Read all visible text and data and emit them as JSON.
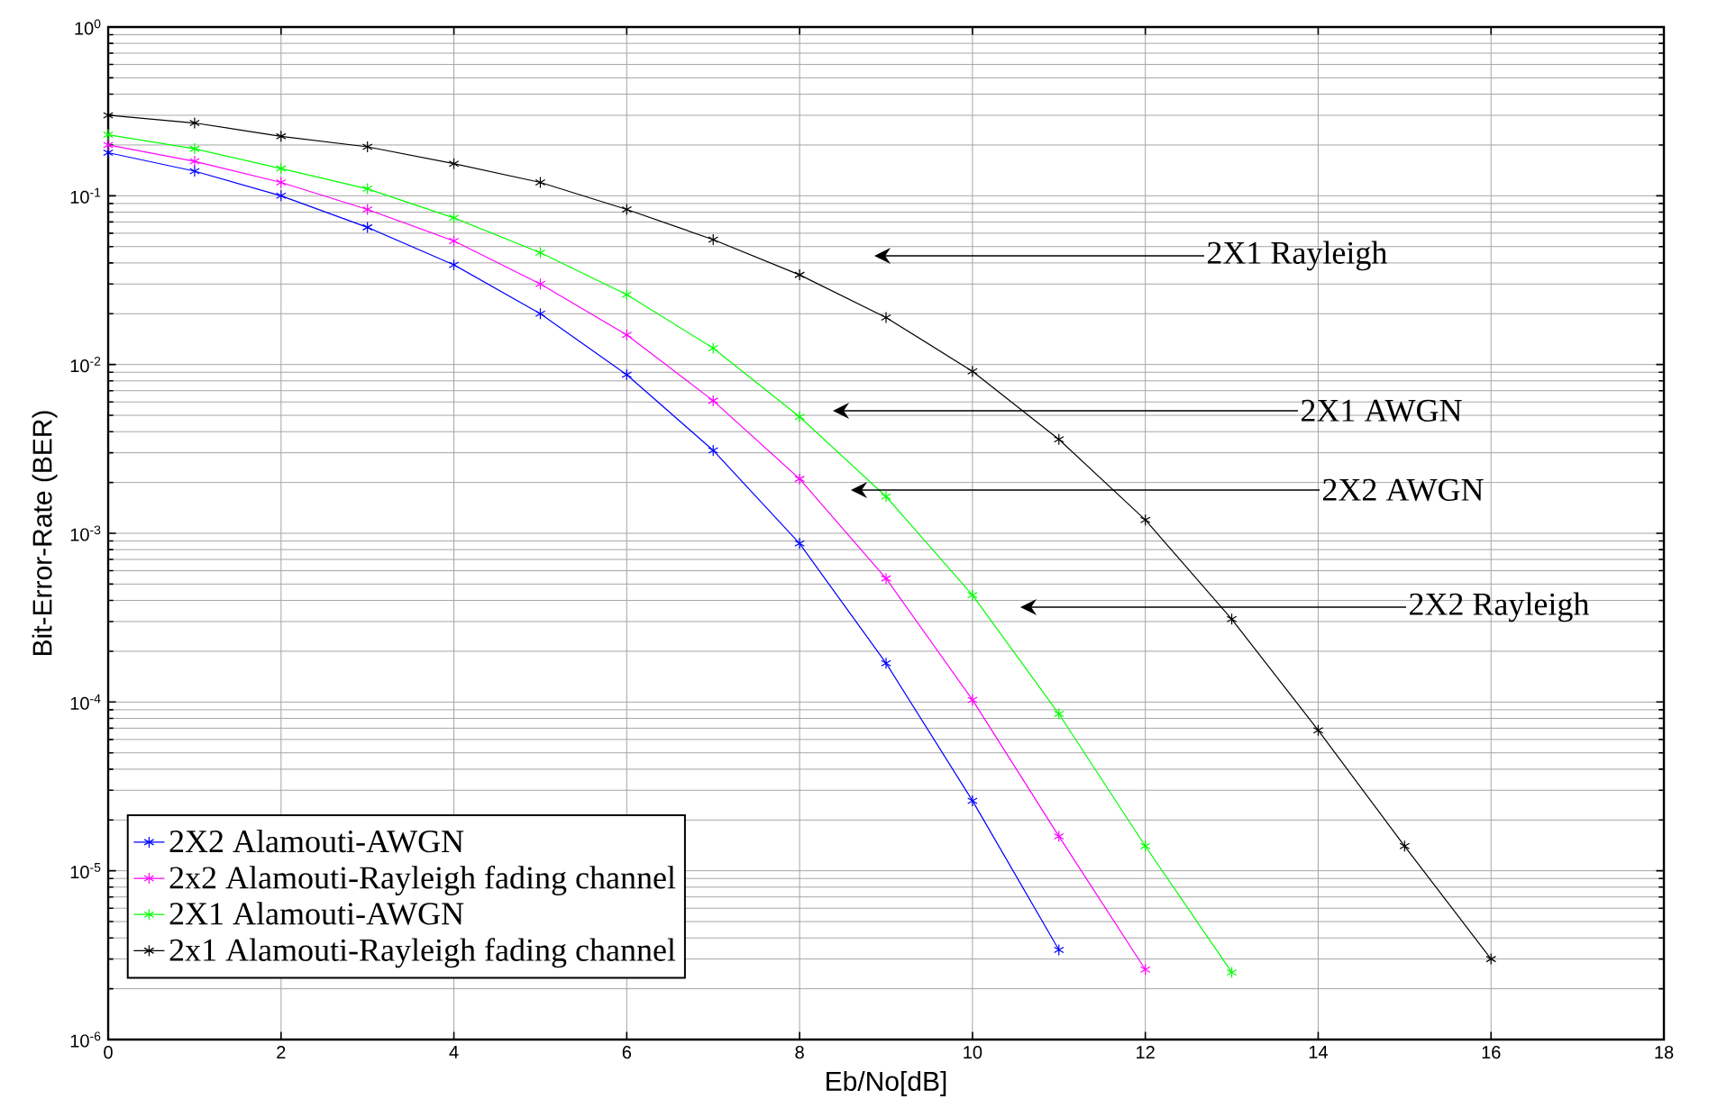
{
  "chart_data": {
    "type": "line",
    "xlabel": "Eb/No[dB]",
    "ylabel": "Bit-Error-Rate (BER)",
    "x": [
      0,
      1,
      2,
      3,
      4,
      5,
      6,
      7,
      8,
      9,
      10,
      11,
      12,
      13,
      14,
      15,
      16
    ],
    "series": [
      {
        "name": "2X2 Alamouti-AWGN",
        "color": "#0000ff",
        "values": [
          0.18,
          0.14,
          0.1,
          0.065,
          0.039,
          0.02,
          0.0087,
          0.0031,
          0.00087,
          0.00017,
          2.6e-05,
          3.4e-06,
          null,
          null,
          null,
          null,
          null
        ]
      },
      {
        "name": "2x2 Alamouti-Rayleigh fading channel",
        "color": "#ff00ff",
        "values": [
          0.2,
          0.16,
          0.12,
          0.083,
          0.054,
          0.03,
          0.015,
          0.0061,
          0.0021,
          0.00054,
          0.000103,
          1.6e-05,
          2.6e-06,
          null,
          null,
          null,
          null
        ]
      },
      {
        "name": "2X1 Alamouti-AWGN",
        "color": "#00ff00",
        "values": [
          0.23,
          0.19,
          0.145,
          0.11,
          0.074,
          0.046,
          0.026,
          0.0125,
          0.0049,
          0.00165,
          0.00043,
          8.5e-05,
          1.4e-05,
          2.5e-06,
          null,
          null,
          null
        ]
      },
      {
        "name": "2x1 Alamouti-Rayleigh fading channel",
        "color": "#000000",
        "values": [
          0.3,
          0.27,
          0.225,
          0.195,
          0.155,
          0.12,
          0.083,
          0.055,
          0.034,
          0.019,
          0.0091,
          0.0036,
          0.0012,
          0.00031,
          6.8e-05,
          1.4e-05,
          3e-06
        ]
      }
    ],
    "xlim": [
      0,
      18
    ],
    "xticks": [
      0,
      2,
      4,
      6,
      8,
      10,
      12,
      14,
      16,
      18
    ],
    "ylim": [
      1e-06,
      1
    ],
    "yticks": [
      {
        "value": 1e-06,
        "label": "10$^{-6}$"
      },
      {
        "value": 1e-05,
        "label": "10$^{-5}$"
      },
      {
        "value": 0.0001,
        "label": "10$^{-4}$"
      },
      {
        "value": 0.001,
        "label": "10$^{-3}$"
      },
      {
        "value": 0.01,
        "label": "10$^{-2}$"
      },
      {
        "value": 0.1,
        "label": "10$^{-1}$"
      },
      {
        "value": 1,
        "label": "10$^{0}$"
      }
    ],
    "log": "y",
    "grid": true,
    "legend": "bottom left",
    "marker": "cross",
    "line_style": "solid",
    "annotations": [
      "2X1 Rayleigh",
      "2X1 AWGN",
      "2X2 AWGN",
      "2X2 Rayleigh"
    ]
  }
}
